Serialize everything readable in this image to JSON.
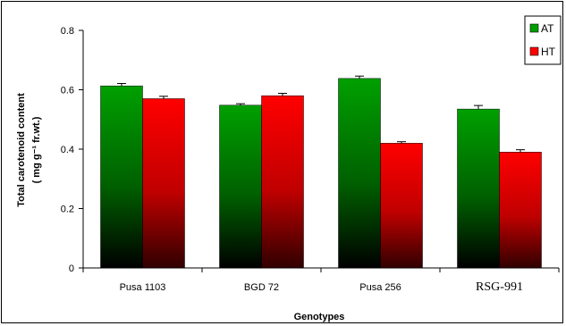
{
  "chart_data": {
    "type": "bar",
    "categories": [
      "Pusa 1103",
      "BGD 72",
      "Pusa 256",
      "RSG-991"
    ],
    "series": [
      {
        "name": "AT",
        "values": [
          0.613,
          0.548,
          0.638,
          0.535
        ],
        "errors": [
          0.008,
          0.005,
          0.008,
          0.012
        ],
        "color": "#00a000"
      },
      {
        "name": "HT",
        "values": [
          0.57,
          0.58,
          0.42,
          0.39
        ],
        "errors": [
          0.008,
          0.008,
          0.005,
          0.008
        ],
        "color": "#ff0000"
      }
    ],
    "xlabel": "Genotypes",
    "ylabel_line1": "Total carotenoid content",
    "ylabel_line2": "( mg g⁻¹ fr.wt.)",
    "ylim": [
      0,
      0.8
    ],
    "yticks": [
      "0",
      "0.2",
      "0.4",
      "0.6",
      "0.8"
    ],
    "legend_position": "top-right",
    "grid": false
  }
}
